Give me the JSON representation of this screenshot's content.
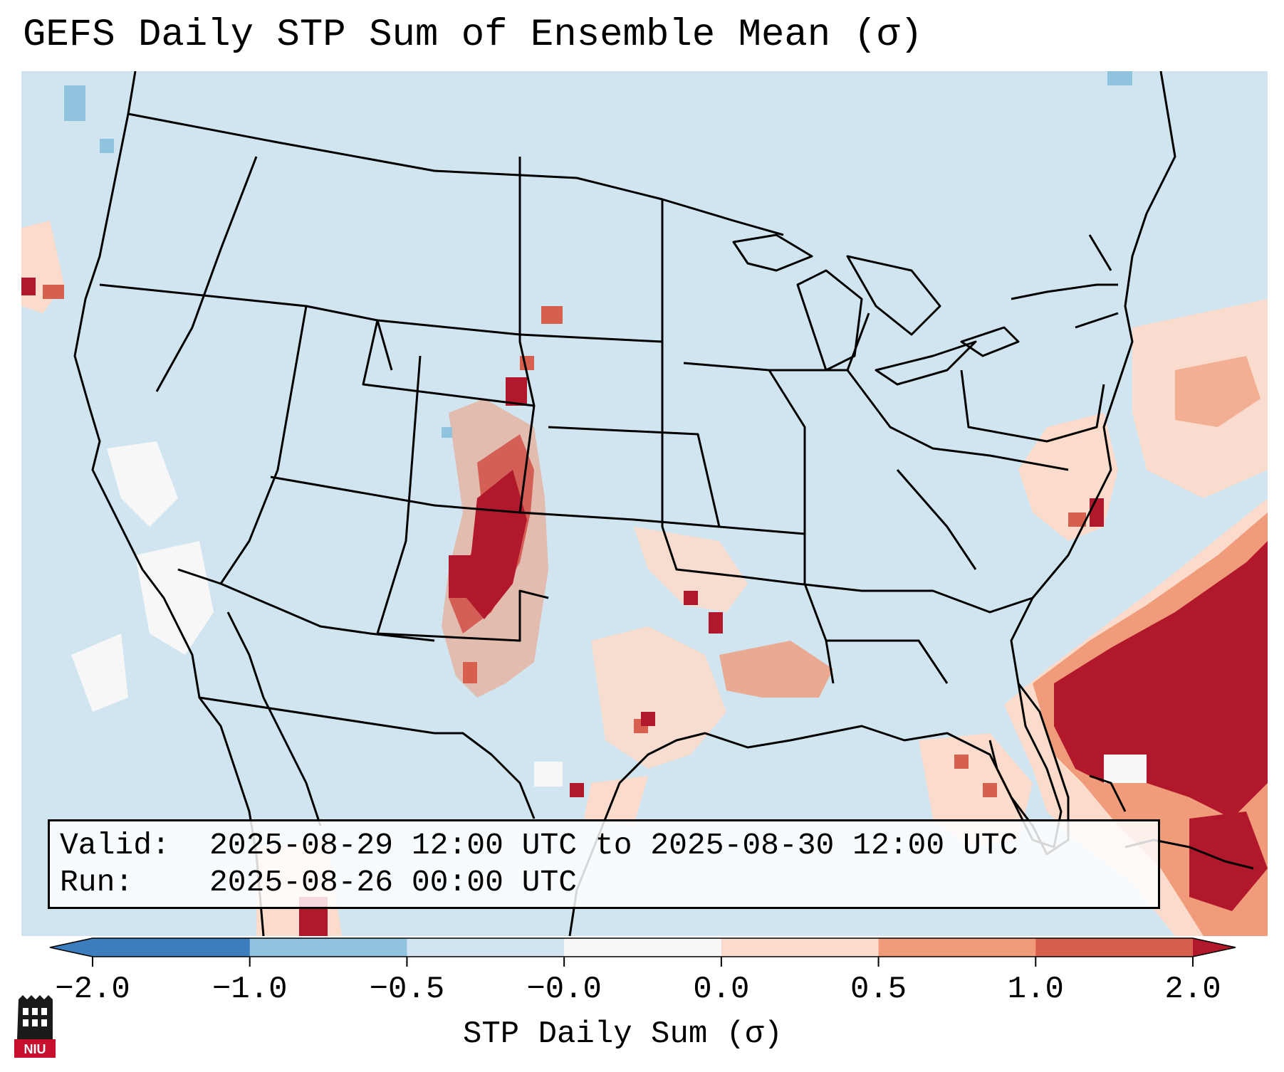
{
  "title": "GEFS Daily STP Sum of Ensemble Mean (σ)",
  "info": {
    "valid_label": "Valid:",
    "valid_value": "2025-08-29 12:00 UTC to 2025-08-30 12:00 UTC",
    "run_label": "Run:",
    "run_value": "2025-08-26 00:00 UTC"
  },
  "colorbar": {
    "label": "STP Daily Sum (σ)",
    "ticks": [
      "−2.0",
      "−1.0",
      "−0.5",
      "−0.0",
      "0.0",
      "0.5",
      "1.0",
      "2.0"
    ],
    "colors": [
      "#3b7dbd",
      "#8fc3de",
      "#cfe4ef",
      "#f7f7f7",
      "#fbdbcb",
      "#f09b7a",
      "#d6604d",
      "#b2182b"
    ]
  },
  "map": {
    "background_color": "#d1e5f0",
    "highlights": [
      {
        "region": "Colorado / New Mexico front range",
        "level": "2.0"
      },
      {
        "region": "Southeast coast & western Atlantic",
        "level": "2.0"
      },
      {
        "region": "Mid-Atlantic coast",
        "level": "1.0"
      },
      {
        "region": "Texas / Louisiana Gulf Coast",
        "level": "0.5"
      }
    ]
  },
  "logo": {
    "text": "NIU",
    "name": "niu-logo"
  }
}
